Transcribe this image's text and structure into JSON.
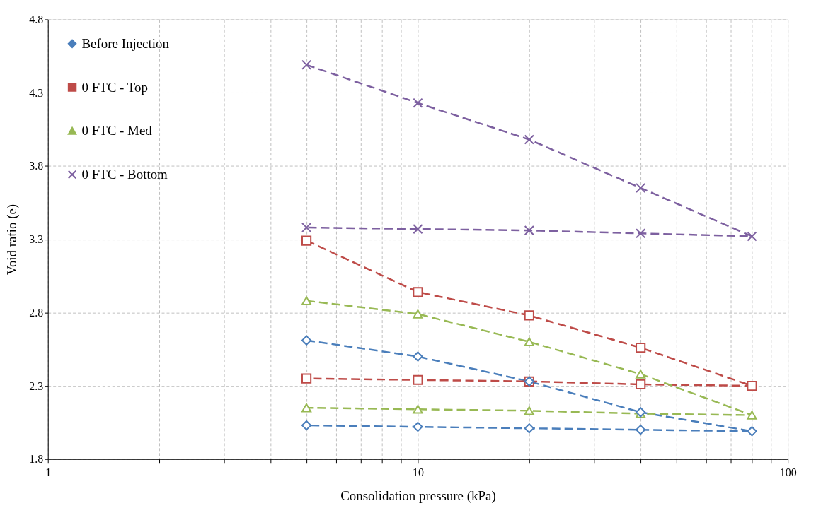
{
  "chart_data": {
    "type": "line",
    "xlabel": "Consolidation pressure (kPa)",
    "ylabel": "Void ratio (e)",
    "x": [
      5,
      10,
      20,
      40,
      80,
      40,
      20,
      10,
      5
    ],
    "series": [
      {
        "name": "Before Injection",
        "color": "#4a7ebb",
        "marker": "diamond",
        "values": [
          2.61,
          2.5,
          2.33,
          2.12,
          1.99,
          2.0,
          2.01,
          2.02,
          2.03
        ]
      },
      {
        "name": "0 FTC - Top",
        "color": "#be4b48",
        "marker": "square",
        "values": [
          3.29,
          2.94,
          2.78,
          2.56,
          2.3,
          2.31,
          2.33,
          2.34,
          2.35
        ]
      },
      {
        "name": "0 FTC - Med",
        "color": "#98b954",
        "marker": "triangle",
        "values": [
          2.88,
          2.79,
          2.6,
          2.38,
          2.1,
          2.11,
          2.13,
          2.14,
          2.15
        ]
      },
      {
        "name": "0 FTC - Bottom",
        "color": "#7d60a0",
        "marker": "cross",
        "values": [
          4.49,
          4.23,
          3.98,
          3.65,
          3.32,
          3.34,
          3.36,
          3.37,
          3.38
        ]
      }
    ],
    "log": "x",
    "xlim": [
      1,
      100
    ],
    "xticks": [
      1,
      {
        "value": 2,
        "label": null
      },
      {
        "value": 3,
        "label": null
      },
      {
        "value": 4,
        "label": null
      },
      {
        "value": 5,
        "label": null
      },
      {
        "value": 6,
        "label": null
      },
      {
        "value": 7,
        "label": null
      },
      {
        "value": 8,
        "label": null
      },
      {
        "value": 9,
        "label": null
      },
      10,
      {
        "value": 20,
        "label": null
      },
      {
        "value": 30,
        "label": null
      },
      {
        "value": 40,
        "label": null
      },
      {
        "value": 50,
        "label": null
      },
      {
        "value": 60,
        "label": null
      },
      {
        "value": 70,
        "label": null
      },
      {
        "value": 80,
        "label": null
      },
      {
        "value": 90,
        "label": null
      },
      100
    ],
    "ylim": [
      1.8,
      4.8
    ],
    "yticks": [
      1.8,
      2.3,
      2.8,
      3.3,
      3.8,
      4.3,
      4.8
    ],
    "grid": true,
    "legend": "top left",
    "line_style": "dashed"
  }
}
